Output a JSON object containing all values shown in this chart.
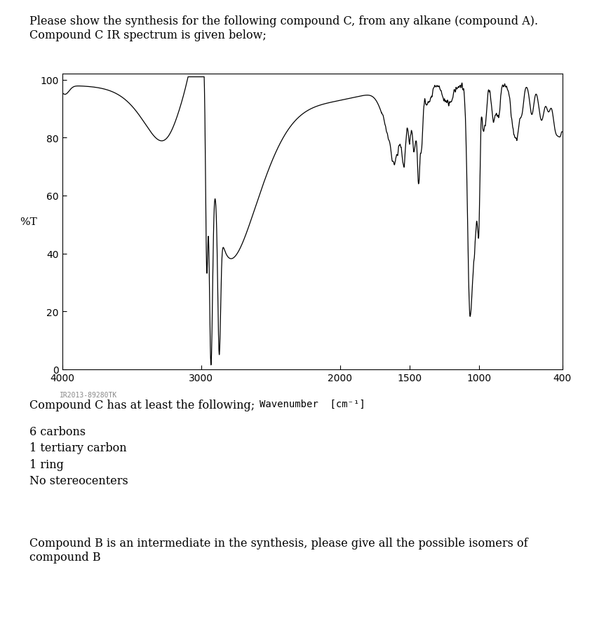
{
  "title_text": "Please show the synthesis for the following compound C, from any alkane (compound A).\nCompound C IR spectrum is given below;",
  "xlabel_main": "Wavenumber",
  "xlabel_unit": " [cm⁻¹]",
  "ylabel": "%T",
  "yticks": [
    0,
    20,
    40,
    60,
    80,
    100
  ],
  "xticks": [
    4000,
    3000,
    2000,
    1500,
    1000,
    400
  ],
  "xlim": [
    4000,
    400
  ],
  "ylim": [
    0,
    102
  ],
  "spectrum_color": "#000000",
  "background_color": "#ffffff",
  "watermark": "IR2013-89280TK",
  "body_text_1": "Compound C has at least the following;",
  "body_text_2": "6 carbons\n1 tertiary carbon\n1 ring\nNo stereocenters",
  "body_text_3": "Compound B is an intermediate in the synthesis, please give all the possible isomers of\ncompound B",
  "fig_width": 8.44,
  "fig_height": 8.87,
  "dpi": 100
}
